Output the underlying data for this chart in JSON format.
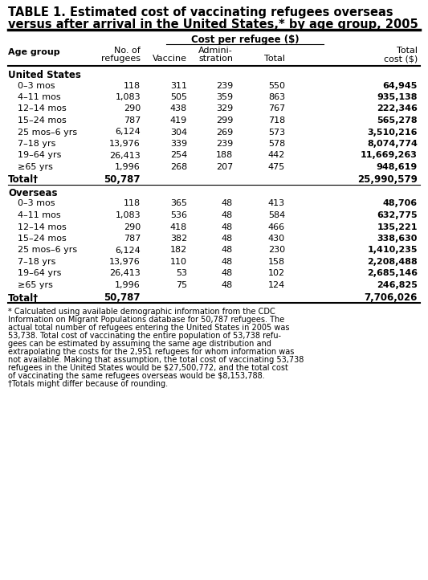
{
  "title_line1": "TABLE 1. Estimated cost of vaccinating refugees overseas",
  "title_line2": "versus after arrival in the United States,* by age group, 2005",
  "col_header_span": "Cost per refugee ($)",
  "us_section_header": "United States",
  "us_rows": [
    [
      "0–3 mos",
      "118",
      "311",
      "239",
      "550",
      "64,945"
    ],
    [
      "4–11 mos",
      "1,083",
      "505",
      "359",
      "863",
      "935,138"
    ],
    [
      "12–14 mos",
      "290",
      "438",
      "329",
      "767",
      "222,346"
    ],
    [
      "15–24 mos",
      "787",
      "419",
      "299",
      "718",
      "565,278"
    ],
    [
      "25 mos–6 yrs",
      "6,124",
      "304",
      "269",
      "573",
      "3,510,216"
    ],
    [
      "7–18 yrs",
      "13,976",
      "339",
      "239",
      "578",
      "8,074,774"
    ],
    [
      "19–64 yrs",
      "26,413",
      "254",
      "188",
      "442",
      "11,669,263"
    ],
    [
      "≥65 yrs",
      "1,996",
      "268",
      "207",
      "475",
      "948,619"
    ]
  ],
  "us_total": [
    "Total†",
    "50,787",
    "",
    "",
    "",
    "25,990,579"
  ],
  "os_section_header": "Overseas",
  "os_rows": [
    [
      "0–3 mos",
      "118",
      "365",
      "48",
      "413",
      "48,706"
    ],
    [
      "4–11 mos",
      "1,083",
      "536",
      "48",
      "584",
      "632,775"
    ],
    [
      "12–14 mos",
      "290",
      "418",
      "48",
      "466",
      "135,221"
    ],
    [
      "15–24 mos",
      "787",
      "382",
      "48",
      "430",
      "338,630"
    ],
    [
      "25 mos–6 yrs",
      "6,124",
      "182",
      "48",
      "230",
      "1,410,235"
    ],
    [
      "7–18 yrs",
      "13,976",
      "110",
      "48",
      "158",
      "2,208,488"
    ],
    [
      "19–64 yrs",
      "26,413",
      "53",
      "48",
      "102",
      "2,685,146"
    ],
    [
      "≥65 yrs",
      "1,996",
      "75",
      "48",
      "124",
      "246,825"
    ]
  ],
  "os_total": [
    "Total†",
    "50,787",
    "",
    "",
    "",
    "7,706,026"
  ],
  "footnote_lines": [
    "* Calculated using available demographic information from the CDC",
    "Information on Migrant Populations database for 50,787 refugees. The",
    "actual total number of refugees entering the United States in 2005 was",
    "53,738. Total cost of vaccinating the entire population of 53,738 refu-",
    "gees can be estimated by assuming the same age distribution and",
    "extrapolating the costs for the 2,951 refugees for whom information was",
    "not available. Making that assumption, the total cost of vaccinating 53,738",
    "refugees in the United States would be $27,500,772, and the total cost",
    "of vaccinating the same refugees overseas would be $8,153,788."
  ],
  "footnote2": "†Totals might differ because of rounding.",
  "bg_color": "#ffffff"
}
